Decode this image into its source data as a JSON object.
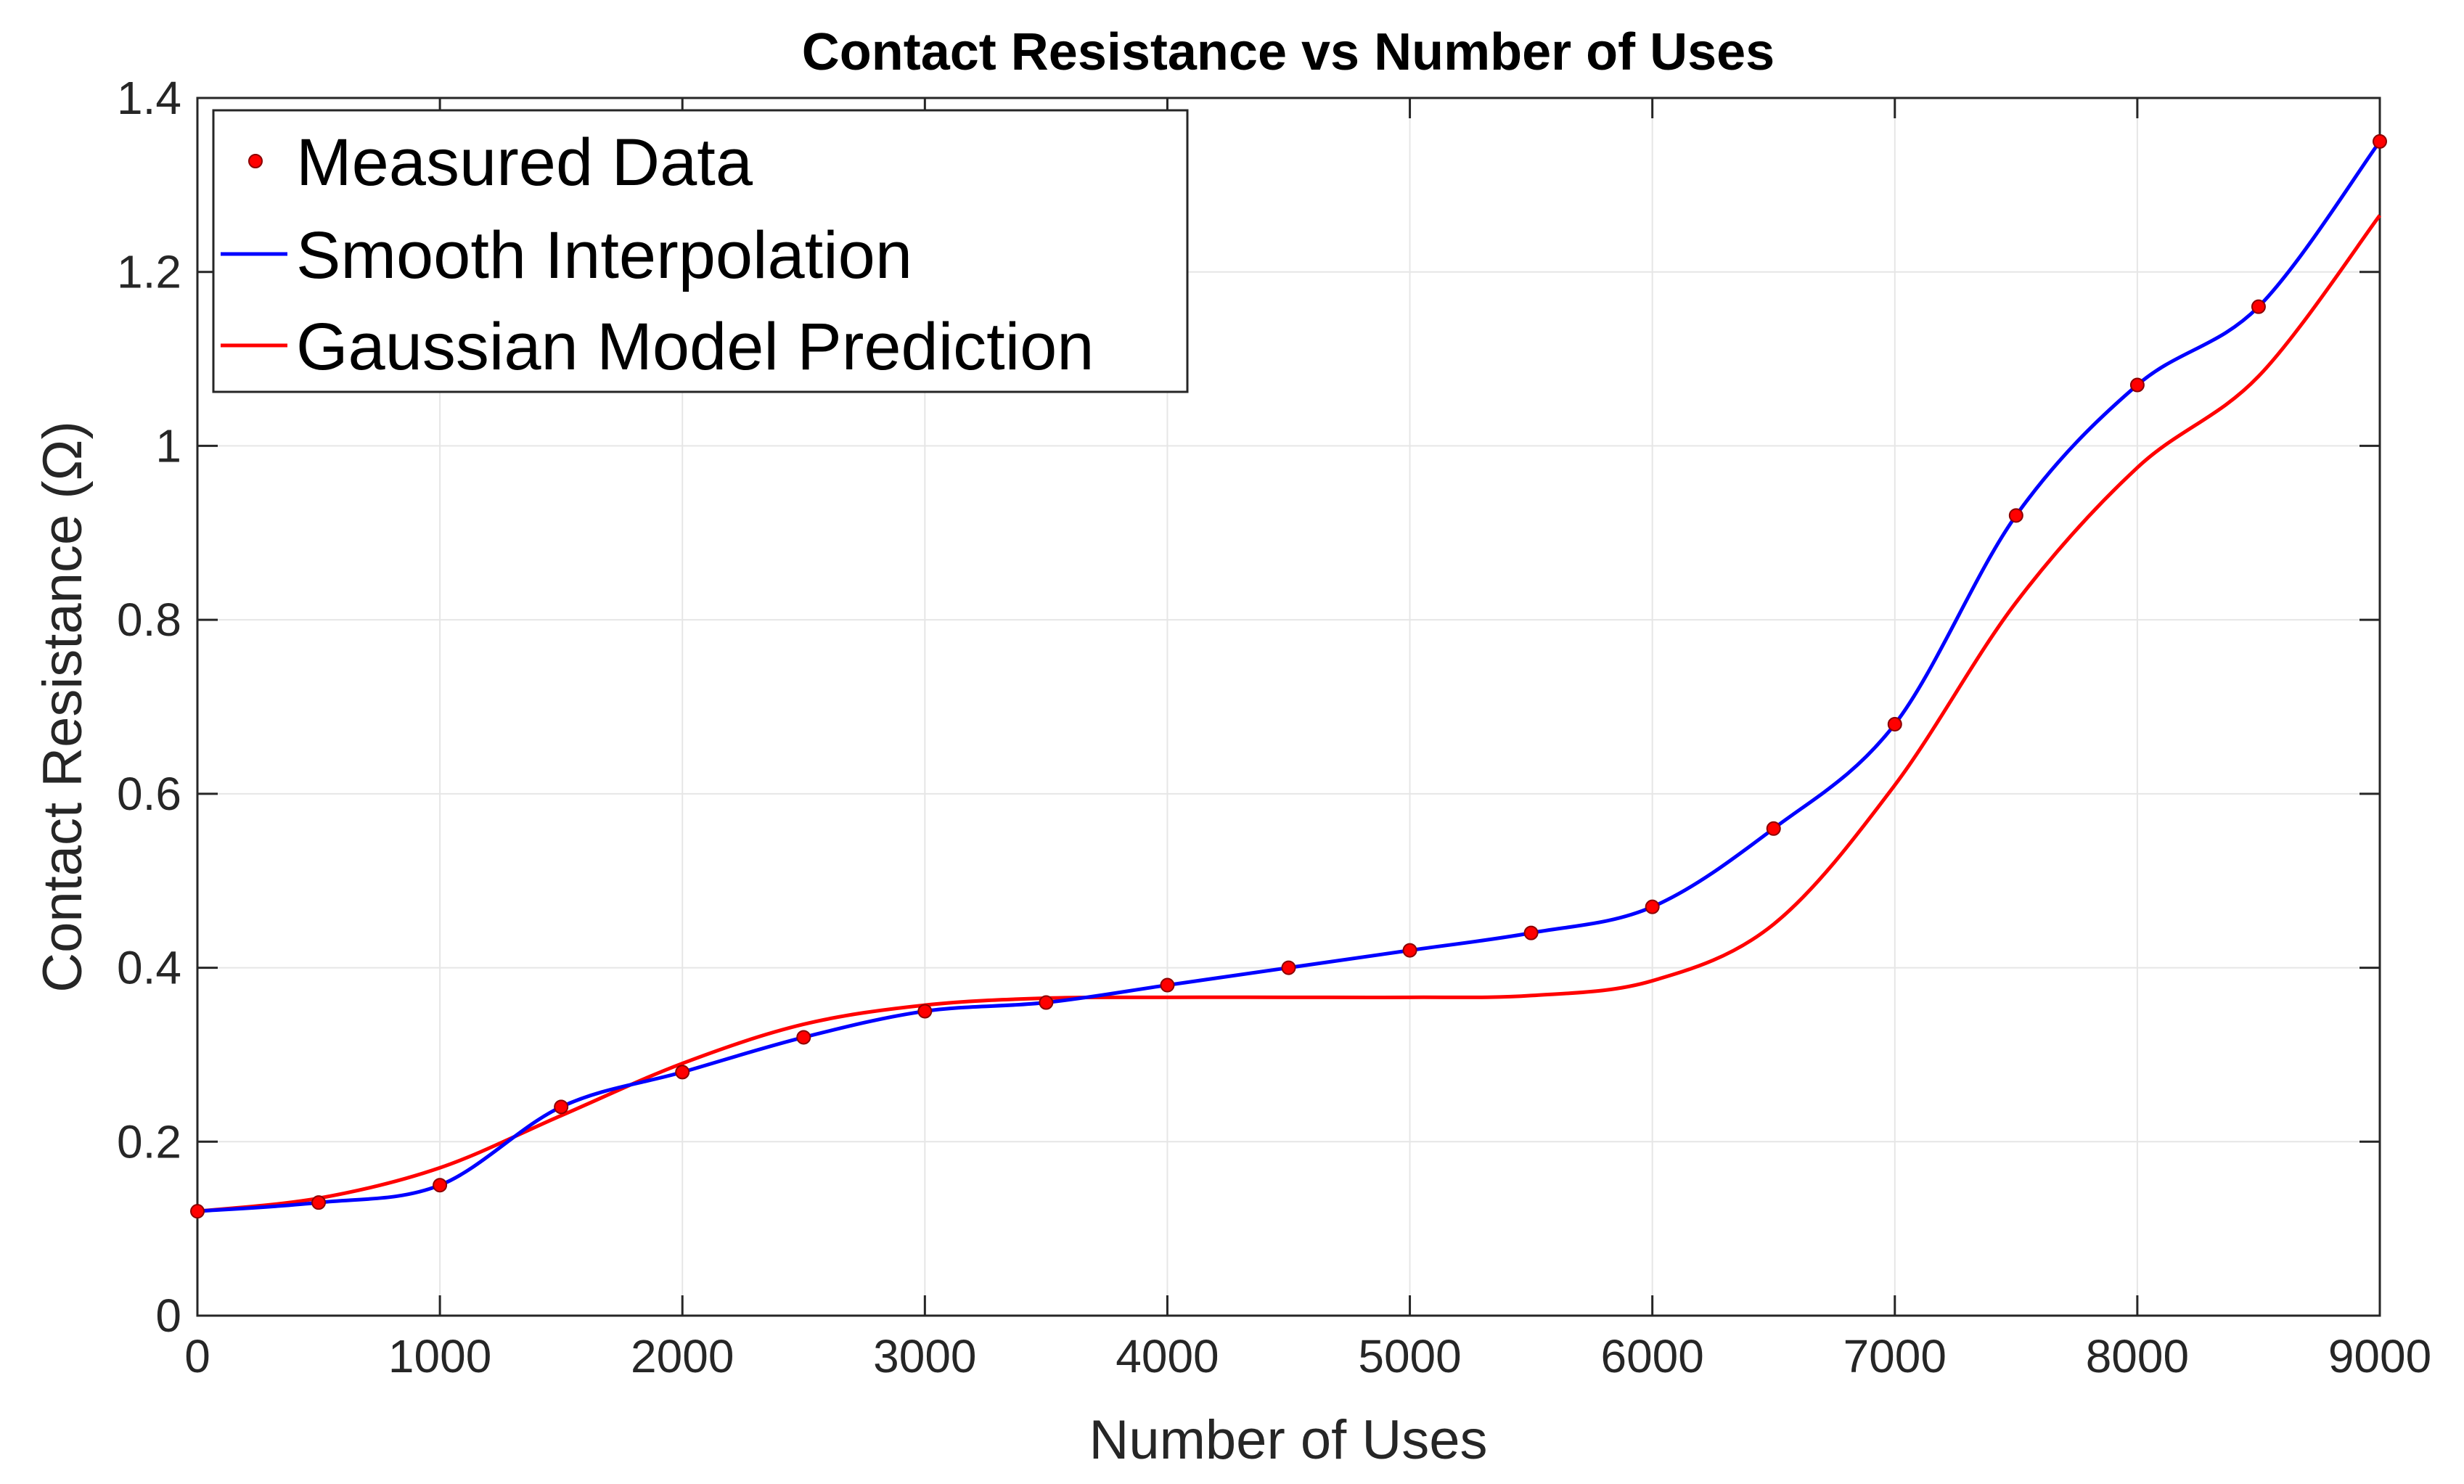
{
  "chart_data": {
    "type": "line",
    "title": "Contact Resistance vs Number of Uses",
    "xlabel": "Number of Uses",
    "ylabel": "Contact Resistance (Ω)",
    "xlim": [
      0,
      9000
    ],
    "ylim": [
      0,
      1.4
    ],
    "xticks": [
      "0",
      "1000",
      "2000",
      "3000",
      "4000",
      "5000",
      "6000",
      "7000",
      "8000",
      "9000"
    ],
    "yticks": [
      "0",
      "0.2",
      "0.4",
      "0.6",
      "0.8",
      "1",
      "1.2",
      "1.4"
    ],
    "grid": true,
    "legend_position": "top-left",
    "x": [
      0,
      500,
      1000,
      1500,
      2000,
      2500,
      3000,
      3500,
      4000,
      4500,
      5000,
      5500,
      6000,
      6500,
      7000,
      7500,
      8000,
      8500,
      9000
    ],
    "series": [
      {
        "name": "Measured Data",
        "style": "markers",
        "color": "#ff0000",
        "values": [
          0.12,
          0.13,
          0.15,
          0.24,
          0.28,
          0.32,
          0.35,
          0.36,
          0.38,
          0.4,
          0.42,
          0.44,
          0.47,
          0.56,
          0.68,
          0.92,
          1.07,
          1.16,
          1.35
        ]
      },
      {
        "name": "Smooth Interpolation",
        "style": "line",
        "color": "#0000ff",
        "values": [
          0.12,
          0.13,
          0.15,
          0.24,
          0.28,
          0.32,
          0.35,
          0.36,
          0.38,
          0.4,
          0.42,
          0.44,
          0.47,
          0.56,
          0.68,
          0.92,
          1.07,
          1.16,
          1.35
        ]
      },
      {
        "name": "Gaussian Model Prediction",
        "style": "line",
        "color": "#ff0000",
        "values": [
          0.12,
          0.135,
          0.17,
          0.23,
          0.29,
          0.335,
          0.357,
          0.365,
          0.366,
          0.366,
          0.366,
          0.368,
          0.385,
          0.45,
          0.61,
          0.82,
          0.975,
          1.08,
          1.265
        ]
      }
    ]
  }
}
